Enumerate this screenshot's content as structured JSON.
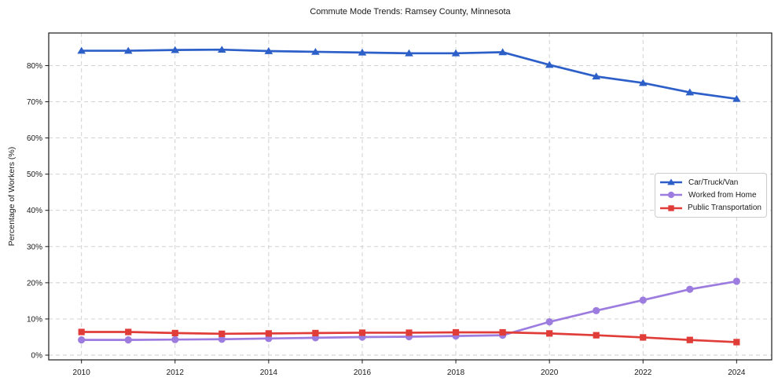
{
  "chart_data": {
    "type": "line",
    "title": "Commute Mode Trends: Ramsey County, Minnesota",
    "xlabel": "",
    "ylabel": "Percentage of Workers (%)",
    "x": [
      2010,
      2011,
      2012,
      2013,
      2014,
      2015,
      2016,
      2017,
      2018,
      2019,
      2020,
      2021,
      2022,
      2023,
      2024
    ],
    "series": [
      {
        "name": "Car/Truck/Van",
        "color": "#2d5fc8",
        "marker": "triangle",
        "values": [
          84.1,
          84.1,
          84.3,
          84.4,
          84.0,
          83.8,
          83.6,
          83.4,
          83.4,
          83.7,
          80.2,
          77.0,
          75.2,
          72.6,
          70.8
        ]
      },
      {
        "name": "Worked from Home",
        "color": "#9d7ce0",
        "marker": "circle",
        "values": [
          4.2,
          4.2,
          4.3,
          4.4,
          4.6,
          4.8,
          5.0,
          5.1,
          5.3,
          5.5,
          9.2,
          12.3,
          15.2,
          18.2,
          20.4
        ]
      },
      {
        "name": "Public Transportation",
        "color": "#e03c38",
        "marker": "square",
        "values": [
          6.4,
          6.4,
          6.1,
          5.9,
          6.0,
          6.1,
          6.2,
          6.2,
          6.3,
          6.3,
          6.0,
          5.5,
          4.9,
          4.2,
          3.6
        ]
      }
    ],
    "xlim": [
      2009.3,
      2024.75
    ],
    "ylim": [
      -1.3,
      89.0
    ],
    "x_ticks": [
      2010,
      2012,
      2014,
      2016,
      2018,
      2020,
      2022,
      2024
    ],
    "x_tick_labels": [
      "2010",
      "2012",
      "2014",
      "2016",
      "2018",
      "2020",
      "2022",
      "2024"
    ],
    "y_ticks": [
      0,
      10,
      20,
      30,
      40,
      50,
      60,
      70,
      80
    ],
    "y_tick_labels": [
      "0%",
      "10%",
      "20%",
      "30%",
      "40%",
      "50%",
      "60%",
      "70%",
      "80%"
    ],
    "grid": true,
    "grid_style": "dashed",
    "legend_position": "center right",
    "colors": {
      "grid": "#cccccc",
      "spine": "#1a1a1a",
      "text": "#1a1a1a",
      "background": "#ffffff"
    }
  }
}
